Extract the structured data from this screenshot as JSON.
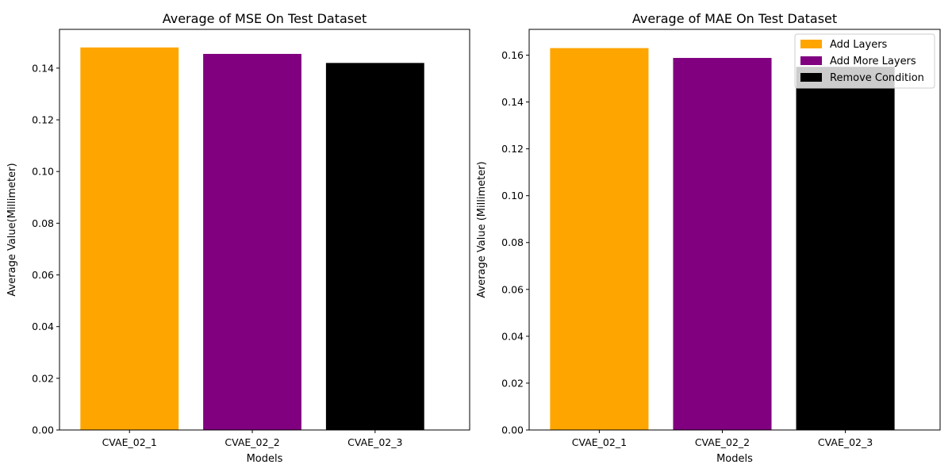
{
  "chart_data": [
    {
      "type": "bar",
      "title": "Average of MSE On Test Dataset",
      "xlabel": "Models",
      "ylabel": "Average Value(Millimeter)",
      "categories": [
        "CVAE_02_1",
        "CVAE_02_2",
        "CVAE_02_3"
      ],
      "values": [
        0.148,
        0.1455,
        0.142
      ],
      "colors": [
        "#ffa500",
        "#800080",
        "#000000"
      ],
      "ylim": [
        0,
        0.155
      ],
      "yticks": [
        "0.00",
        "0.02",
        "0.04",
        "0.06",
        "0.08",
        "0.10",
        "0.12",
        "0.14"
      ],
      "grid": false,
      "legend": null
    },
    {
      "type": "bar",
      "title": "Average of MAE On Test Dataset",
      "xlabel": "Models",
      "ylabel": "Average Value (Millimeter)",
      "categories": [
        "CVAE_02_1",
        "CVAE_02_2",
        "CVAE_02_3"
      ],
      "values": [
        0.163,
        0.1588,
        0.155
      ],
      "colors": [
        "#ffa500",
        "#800080",
        "#000000"
      ],
      "ylim": [
        0,
        0.171
      ],
      "yticks": [
        "0.00",
        "0.02",
        "0.04",
        "0.06",
        "0.08",
        "0.10",
        "0.12",
        "0.14",
        "0.16"
      ],
      "grid": false,
      "legend": {
        "placement": "top-right",
        "entries": [
          "Add Layers",
          "Add More Layers",
          "Remove Condition"
        ],
        "colors": [
          "#ffa500",
          "#800080",
          "#000000"
        ]
      }
    }
  ]
}
